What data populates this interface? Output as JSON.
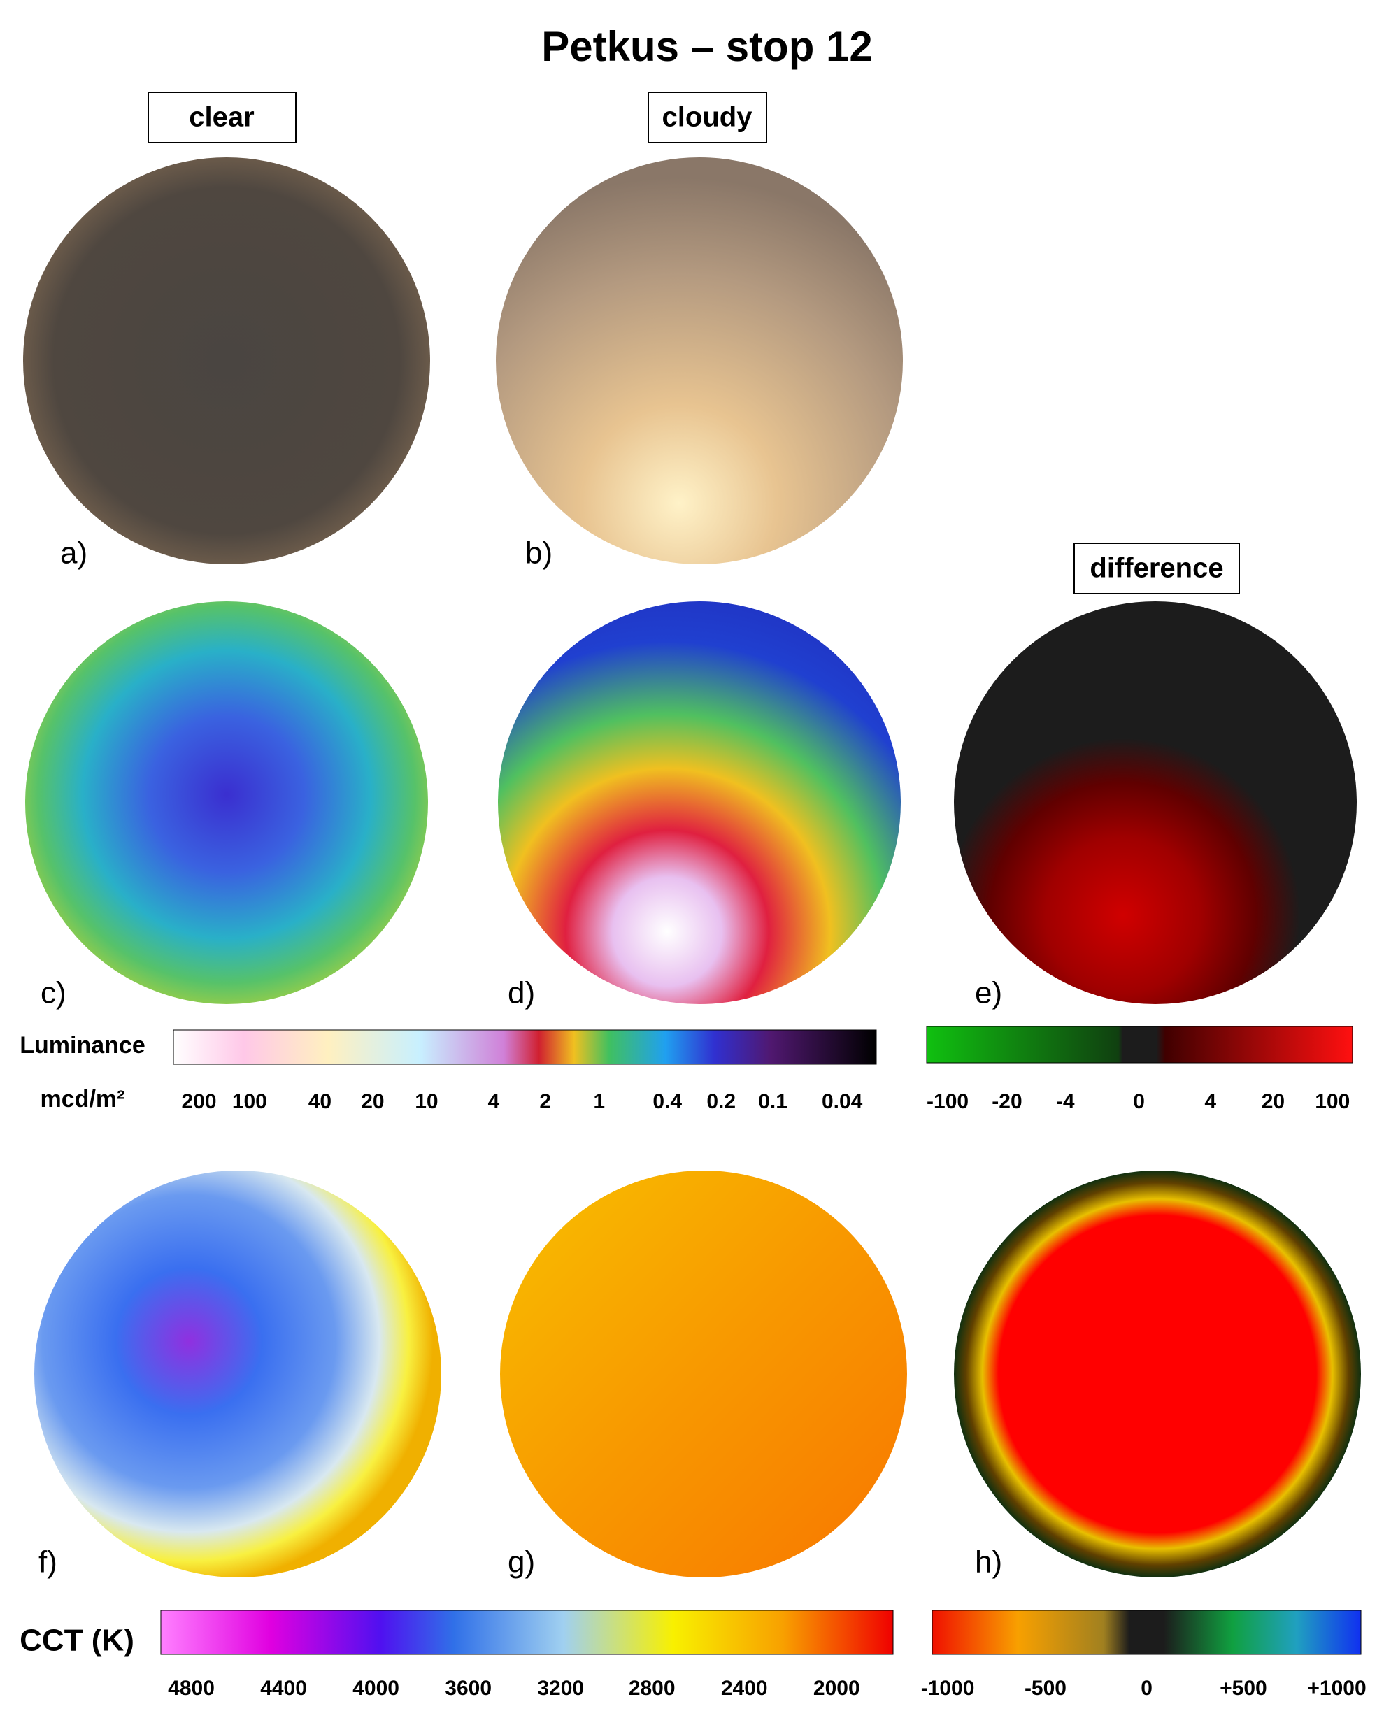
{
  "title": "Petkus – stop 12",
  "boxes": {
    "clear": "clear",
    "cloudy": "cloudy",
    "difference": "difference"
  },
  "panels": [
    "a)",
    "b)",
    "c)",
    "d)",
    "e)",
    "f)",
    "g)",
    "h)"
  ],
  "luminance_bar": {
    "label": "Luminance",
    "unit": "mcd/m²",
    "ticks": [
      "200",
      "100",
      "40",
      "20",
      "10",
      "4",
      "2",
      "1",
      "0.4",
      "0.2",
      "0.1",
      "0.04"
    ]
  },
  "difference_bar": {
    "ticks": [
      "-100",
      "-20",
      "-4",
      "0",
      "4",
      "20",
      "100"
    ]
  },
  "cct_bar": {
    "label": "CCT (K)",
    "ticks": [
      "4800",
      "4400",
      "4000",
      "3600",
      "3200",
      "2800",
      "2400",
      "2000"
    ]
  },
  "cct_difference_bar": {
    "ticks": [
      "-1000",
      "-500",
      "0",
      "+500",
      "+1000"
    ]
  }
}
